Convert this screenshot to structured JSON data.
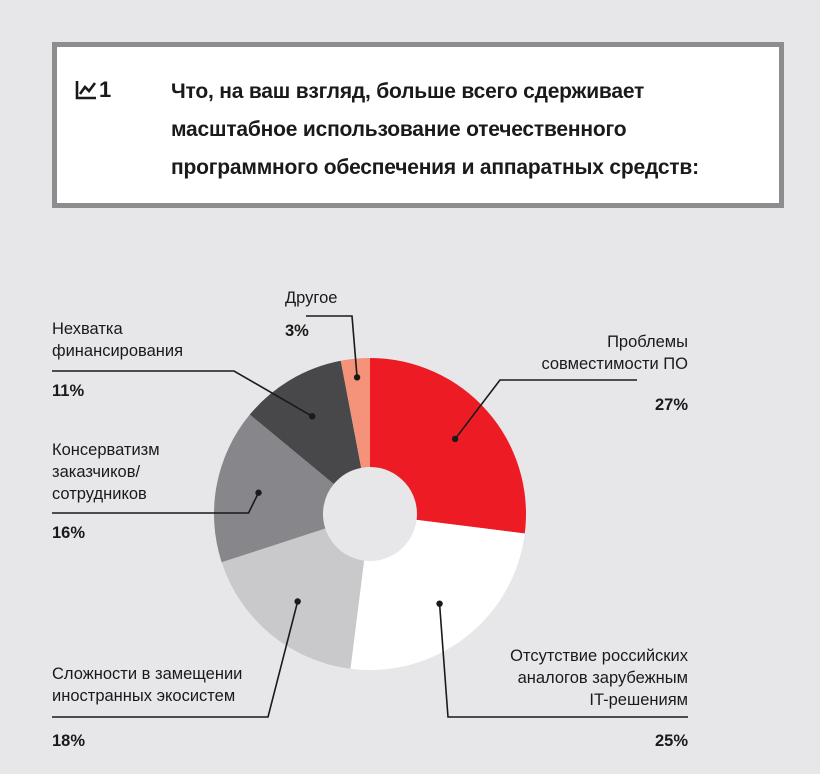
{
  "question": {
    "number": "1",
    "text": "Что, на ваш взгляд, больше всего сдерживает масштабное использование отечественного программного обеспечения и аппаратных средств:"
  },
  "icon_name": "chart-line-icon",
  "chart_data": {
    "type": "pie",
    "donut": true,
    "start": "top, clockwise",
    "slices": [
      {
        "label": [
          "Проблемы",
          "совместимости ПО"
        ],
        "value": 27,
        "display": "27%",
        "color": "#ed1c24"
      },
      {
        "label": [
          "Отсутствие российских",
          "аналогов зарубежным",
          "IT-решениям"
        ],
        "value": 25,
        "display": "25%",
        "color": "#ffffff"
      },
      {
        "label": [
          "Сложности в замещении",
          "иностранных экосистем"
        ],
        "value": 18,
        "display": "18%",
        "color": "#c9c9cb"
      },
      {
        "label": [
          "Консерватизм",
          "заказчиков/",
          "сотрудников"
        ],
        "value": 16,
        "display": "16%",
        "color": "#87878b"
      },
      {
        "label": [
          "Нехватка",
          "финансирования"
        ],
        "value": 11,
        "display": "11%",
        "color": "#48484a"
      },
      {
        "label": [
          "Другое"
        ],
        "value": 3,
        "display": "3%",
        "color": "#f4937a"
      }
    ]
  }
}
